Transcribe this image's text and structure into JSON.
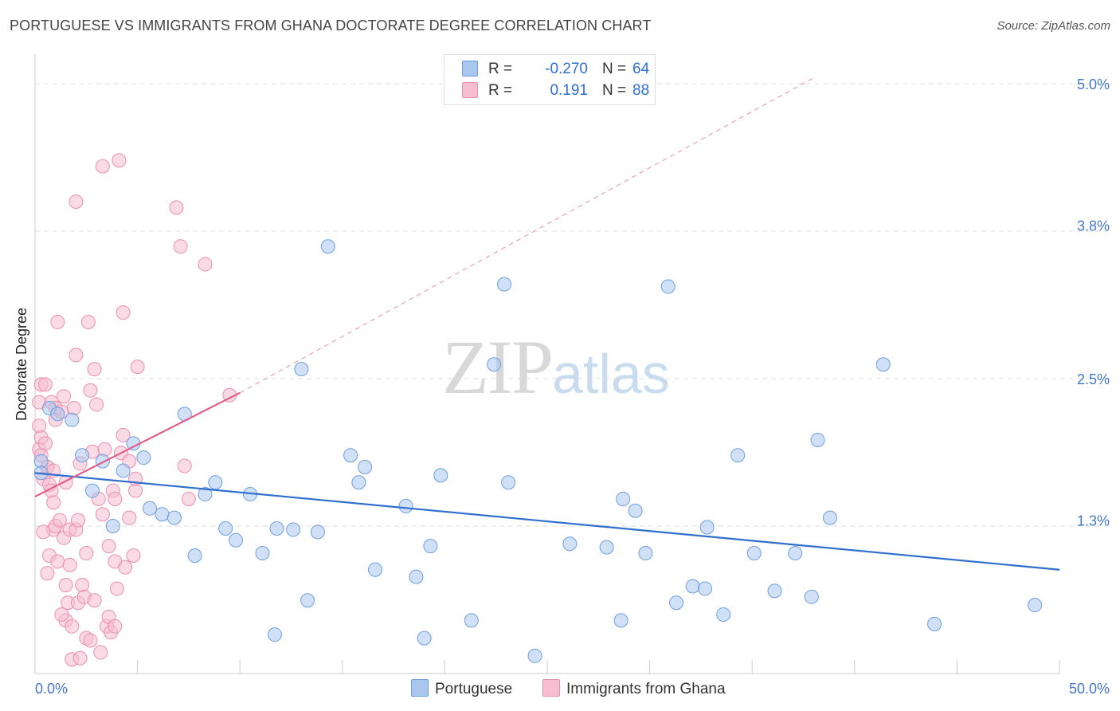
{
  "header": {
    "title": "PORTUGUESE VS IMMIGRANTS FROM GHANA DOCTORATE DEGREE CORRELATION CHART",
    "source": "Source: ZipAtlas.com"
  },
  "watermark": {
    "zip": "ZIP",
    "atlas": "atlas"
  },
  "legend": {
    "rows": [
      {
        "r_label": "R =",
        "r_value": "-0.270",
        "n_label": "N =",
        "n_value": "64"
      },
      {
        "r_label": "R =",
        "r_value": "0.191",
        "n_label": "N =",
        "n_value": "88"
      }
    ]
  },
  "bottom_legend": {
    "series1": "Portuguese",
    "series2": "Immigrants from Ghana"
  },
  "colors": {
    "blue_fill": "#a9c6ee",
    "blue_stroke": "#6f9ee0",
    "blue_line": "#2e6fcf",
    "pink_fill": "#f6bed0",
    "pink_stroke": "#ec8fae",
    "pink_line": "#e0628c",
    "grid": "#dddddd",
    "tick_text": "#4477cc"
  },
  "chart_data": {
    "type": "scatter",
    "title": "PORTUGUESE VS IMMIGRANTS FROM GHANA DOCTORATE DEGREE CORRELATION CHART",
    "xlabel": "",
    "ylabel": "Doctorate Degree",
    "xlim": [
      0,
      50
    ],
    "ylim": [
      0,
      5.25
    ],
    "x_tick_labels": [
      {
        "value": 0,
        "label": "0.0%"
      },
      {
        "value": 50,
        "label": "50.0%"
      }
    ],
    "y_tick_labels": [
      {
        "value": 1.3,
        "label": "1.3%"
      },
      {
        "value": 2.5,
        "label": "2.5%"
      },
      {
        "value": 3.8,
        "label": "3.8%"
      },
      {
        "value": 5.0,
        "label": "5.0%"
      }
    ],
    "y_gridlines": [
      1.25,
      2.5,
      3.75,
      5.0
    ],
    "x_minor_ticks": [
      5,
      10,
      15,
      20,
      25,
      30,
      35,
      40,
      45,
      50
    ],
    "series": [
      {
        "name": "Portuguese",
        "R": -0.27,
        "N": 64,
        "trend": {
          "x": [
            0,
            50
          ],
          "y": [
            1.7,
            0.88
          ],
          "style": "solid"
        },
        "points": [
          [
            0.3,
            1.8
          ],
          [
            0.3,
            1.7
          ],
          [
            0.7,
            2.25
          ],
          [
            1.1,
            2.2
          ],
          [
            1.8,
            2.15
          ],
          [
            2.3,
            1.85
          ],
          [
            2.8,
            1.55
          ],
          [
            3.3,
            1.8
          ],
          [
            3.8,
            1.25
          ],
          [
            4.3,
            1.72
          ],
          [
            4.8,
            1.95
          ],
          [
            5.3,
            1.83
          ],
          [
            5.6,
            1.4
          ],
          [
            6.2,
            1.35
          ],
          [
            6.8,
            1.32
          ],
          [
            7.3,
            2.2
          ],
          [
            7.8,
            1.0
          ],
          [
            8.3,
            1.52
          ],
          [
            8.8,
            1.62
          ],
          [
            9.3,
            1.23
          ],
          [
            9.8,
            1.13
          ],
          [
            10.5,
            1.52
          ],
          [
            11.1,
            1.02
          ],
          [
            11.8,
            1.23
          ],
          [
            11.7,
            0.33
          ],
          [
            12.6,
            1.22
          ],
          [
            13.0,
            2.58
          ],
          [
            13.3,
            0.62
          ],
          [
            13.8,
            1.2
          ],
          [
            14.3,
            3.62
          ],
          [
            15.4,
            1.85
          ],
          [
            15.8,
            1.62
          ],
          [
            16.1,
            1.75
          ],
          [
            16.6,
            0.88
          ],
          [
            18.1,
            1.42
          ],
          [
            18.6,
            0.82
          ],
          [
            19.0,
            0.3
          ],
          [
            19.3,
            1.08
          ],
          [
            19.8,
            1.68
          ],
          [
            21.3,
            0.45
          ],
          [
            22.4,
            2.62
          ],
          [
            23.1,
            1.62
          ],
          [
            22.9,
            3.3
          ],
          [
            24.4,
            0.15
          ],
          [
            26.1,
            1.1
          ],
          [
            27.9,
            1.07
          ],
          [
            28.6,
            0.45
          ],
          [
            28.7,
            1.48
          ],
          [
            29.3,
            1.38
          ],
          [
            29.8,
            1.02
          ],
          [
            30.9,
            3.28
          ],
          [
            31.3,
            0.6
          ],
          [
            32.1,
            0.74
          ],
          [
            32.7,
            0.72
          ],
          [
            32.8,
            1.24
          ],
          [
            33.6,
            0.5
          ],
          [
            34.3,
            1.85
          ],
          [
            35.1,
            1.02
          ],
          [
            36.1,
            0.7
          ],
          [
            37.1,
            1.02
          ],
          [
            37.9,
            0.65
          ],
          [
            38.2,
            1.98
          ],
          [
            38.8,
            1.32
          ],
          [
            41.4,
            2.62
          ],
          [
            43.9,
            0.42
          ],
          [
            48.8,
            0.58
          ]
        ]
      },
      {
        "name": "Immigrants from Ghana",
        "R": 0.191,
        "N": 88,
        "trend_solid": {
          "x": [
            0,
            10
          ],
          "y": [
            1.5,
            2.38
          ]
        },
        "trend_dashed": {
          "x": [
            10,
            38
          ],
          "y": [
            2.38,
            5.05
          ]
        },
        "points": [
          [
            0.2,
            2.3
          ],
          [
            0.2,
            2.1
          ],
          [
            0.2,
            1.9
          ],
          [
            0.3,
            2.45
          ],
          [
            0.3,
            2.0
          ],
          [
            0.3,
            1.85
          ],
          [
            0.4,
            1.65
          ],
          [
            0.5,
            2.45
          ],
          [
            0.5,
            1.95
          ],
          [
            0.6,
            1.75
          ],
          [
            0.6,
            1.75
          ],
          [
            0.7,
            1.6
          ],
          [
            0.7,
            1.0
          ],
          [
            0.8,
            2.3
          ],
          [
            0.8,
            1.55
          ],
          [
            0.9,
            1.45
          ],
          [
            0.9,
            1.22
          ],
          [
            0.9,
            1.72
          ],
          [
            1.0,
            2.25
          ],
          [
            1.0,
            2.15
          ],
          [
            1.0,
            1.25
          ],
          [
            1.1,
            2.98
          ],
          [
            1.1,
            0.95
          ],
          [
            1.2,
            1.3
          ],
          [
            1.3,
            2.22
          ],
          [
            1.4,
            2.35
          ],
          [
            1.4,
            1.15
          ],
          [
            1.5,
            0.75
          ],
          [
            1.5,
            0.45
          ],
          [
            1.6,
            0.6
          ],
          [
            1.7,
            1.22
          ],
          [
            1.7,
            0.92
          ],
          [
            1.8,
            0.4
          ],
          [
            1.8,
            0.12
          ],
          [
            1.9,
            2.25
          ],
          [
            2.0,
            4.0
          ],
          [
            2.0,
            2.7
          ],
          [
            2.0,
            1.22
          ],
          [
            2.1,
            1.3
          ],
          [
            2.1,
            0.6
          ],
          [
            2.2,
            0.13
          ],
          [
            2.3,
            0.75
          ],
          [
            2.4,
            0.65
          ],
          [
            2.5,
            0.3
          ],
          [
            2.5,
            1.02
          ],
          [
            2.6,
            2.98
          ],
          [
            2.7,
            2.4
          ],
          [
            2.8,
            1.88
          ],
          [
            2.9,
            2.58
          ],
          [
            2.9,
            0.62
          ],
          [
            3.0,
            2.28
          ],
          [
            3.1,
            1.48
          ],
          [
            3.2,
            0.18
          ],
          [
            3.3,
            4.3
          ],
          [
            3.3,
            1.35
          ],
          [
            3.4,
            1.9
          ],
          [
            3.5,
            0.4
          ],
          [
            3.6,
            0.48
          ],
          [
            3.7,
            0.35
          ],
          [
            3.8,
            1.55
          ],
          [
            3.9,
            1.48
          ],
          [
            3.9,
            0.95
          ],
          [
            3.9,
            0.4
          ],
          [
            4.0,
            0.72
          ],
          [
            4.1,
            4.35
          ],
          [
            4.2,
            1.87
          ],
          [
            4.3,
            3.06
          ],
          [
            4.3,
            2.02
          ],
          [
            4.6,
            1.8
          ],
          [
            4.6,
            1.32
          ],
          [
            4.8,
            1.0
          ],
          [
            4.9,
            1.55
          ],
          [
            4.9,
            1.65
          ],
          [
            5.0,
            2.6
          ],
          [
            6.9,
            3.95
          ],
          [
            7.1,
            3.62
          ],
          [
            7.3,
            1.76
          ],
          [
            7.5,
            1.48
          ],
          [
            8.3,
            3.47
          ],
          [
            9.5,
            2.36
          ],
          [
            0.4,
            1.2
          ],
          [
            1.5,
            1.62
          ],
          [
            2.2,
            1.78
          ],
          [
            3.6,
            1.08
          ],
          [
            0.6,
            0.85
          ],
          [
            1.3,
            0.5
          ],
          [
            4.4,
            0.9
          ],
          [
            2.7,
            0.28
          ]
        ]
      }
    ]
  }
}
